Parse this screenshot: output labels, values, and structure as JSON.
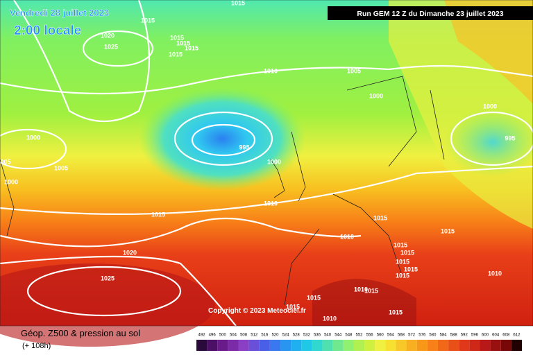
{
  "header": {
    "date": "Vendredi 28 juillet 2023",
    "time": "2:00 locale",
    "run": "Run GEM 12 Z du Dimanche 23 juillet 2023"
  },
  "footer": {
    "title": "Géop. Z500 & pression au sol",
    "lead": "(+ 108h)",
    "copyright": "Copyright © 2023 Meteociel.fr"
  },
  "isobar_labels": [
    "1015",
    "1015",
    "1020",
    "1025",
    "1015",
    "1015",
    "1015",
    "1015",
    "1010",
    "1005",
    "1000",
    "1000",
    "995",
    "995",
    "1000",
    "005",
    "1005",
    "1000",
    "1000",
    "1010",
    "1015",
    "1015",
    "1015",
    "1010",
    "1015",
    "1015",
    "1015",
    "1015",
    "1015",
    "1020",
    "1025",
    "1010",
    "1015",
    "1010",
    "1015",
    "1015",
    "1015",
    "1010"
  ],
  "legend": {
    "values": [
      492,
      496,
      500,
      504,
      508,
      512,
      516,
      520,
      524,
      528,
      532,
      536,
      540,
      544,
      548,
      552,
      556,
      560,
      564,
      568,
      572,
      576,
      580,
      584,
      588,
      592,
      596,
      600,
      604,
      608,
      612
    ],
    "colors": [
      "#2a0a3a",
      "#4b0f66",
      "#6a1b8a",
      "#7b2ba8",
      "#8a3fc4",
      "#6a4fd8",
      "#4a5fe8",
      "#3a78f0",
      "#2a95f0",
      "#20b0f0",
      "#20c8e8",
      "#30d8d0",
      "#50e0b0",
      "#70e890",
      "#90f070",
      "#b0f050",
      "#d0f040",
      "#f0f040",
      "#f8e030",
      "#f8c828",
      "#f8b020",
      "#f89818",
      "#f88018",
      "#f06818",
      "#e85018",
      "#e03818",
      "#d02818",
      "#b81818",
      "#981010",
      "#780808",
      "#200000"
    ]
  }
}
